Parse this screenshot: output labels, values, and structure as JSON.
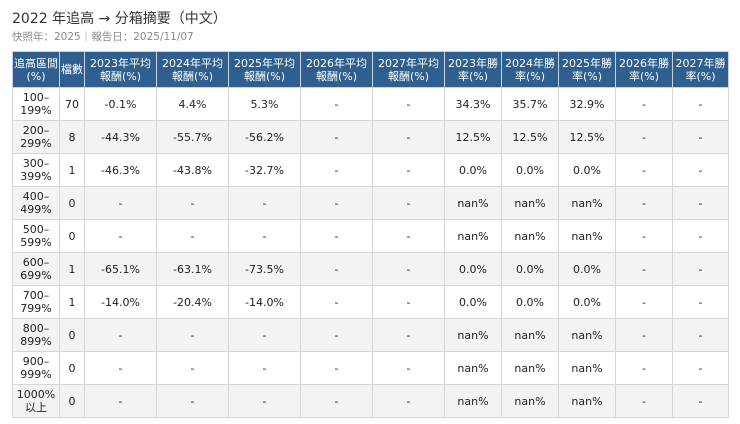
{
  "title": "2022 年追高 → 分箱摘要（中文）",
  "subtitle": "快照年：2025｜報告日：2025/11/07",
  "table": {
    "columns": [
      "追高區間(%)",
      "檔數",
      "2023年平均報酬(%)",
      "2024年平均報酬(%)",
      "2025年平均報酬(%)",
      "2026年平均報酬(%)",
      "2027年平均報酬(%)",
      "2023年勝率(%)",
      "2024年勝率(%)",
      "2025年勝率(%)",
      "2026年勝率(%)",
      "2027年勝率(%)"
    ],
    "rows": [
      [
        "100–199%",
        "70",
        "-0.1%",
        "4.4%",
        "5.3%",
        "-",
        "-",
        "34.3%",
        "35.7%",
        "32.9%",
        "-",
        "-"
      ],
      [
        "200–299%",
        "8",
        "-44.3%",
        "-55.7%",
        "-56.2%",
        "-",
        "-",
        "12.5%",
        "12.5%",
        "12.5%",
        "-",
        "-"
      ],
      [
        "300–399%",
        "1",
        "-46.3%",
        "-43.8%",
        "-32.7%",
        "-",
        "-",
        "0.0%",
        "0.0%",
        "0.0%",
        "-",
        "-"
      ],
      [
        "400–499%",
        "0",
        "-",
        "-",
        "-",
        "-",
        "-",
        "nan%",
        "nan%",
        "nan%",
        "-",
        "-"
      ],
      [
        "500–599%",
        "0",
        "-",
        "-",
        "-",
        "-",
        "-",
        "nan%",
        "nan%",
        "nan%",
        "-",
        "-"
      ],
      [
        "600–699%",
        "1",
        "-65.1%",
        "-63.1%",
        "-73.5%",
        "-",
        "-",
        "0.0%",
        "0.0%",
        "0.0%",
        "-",
        "-"
      ],
      [
        "700–799%",
        "1",
        "-14.0%",
        "-20.4%",
        "-14.0%",
        "-",
        "-",
        "0.0%",
        "0.0%",
        "0.0%",
        "-",
        "-"
      ],
      [
        "800–899%",
        "0",
        "-",
        "-",
        "-",
        "-",
        "-",
        "nan%",
        "nan%",
        "nan%",
        "-",
        "-"
      ],
      [
        "900–999%",
        "0",
        "-",
        "-",
        "-",
        "-",
        "-",
        "nan%",
        "nan%",
        "nan%",
        "-",
        "-"
      ],
      [
        "1000%以上",
        "0",
        "-",
        "-",
        "-",
        "-",
        "-",
        "nan%",
        "nan%",
        "nan%",
        "-",
        "-"
      ]
    ]
  },
  "colors": {
    "header_bg": "#2f5f8f",
    "header_text": "#ffffff",
    "stripe_bg": "#f3f3f3",
    "border": "#d6d6d6"
  }
}
